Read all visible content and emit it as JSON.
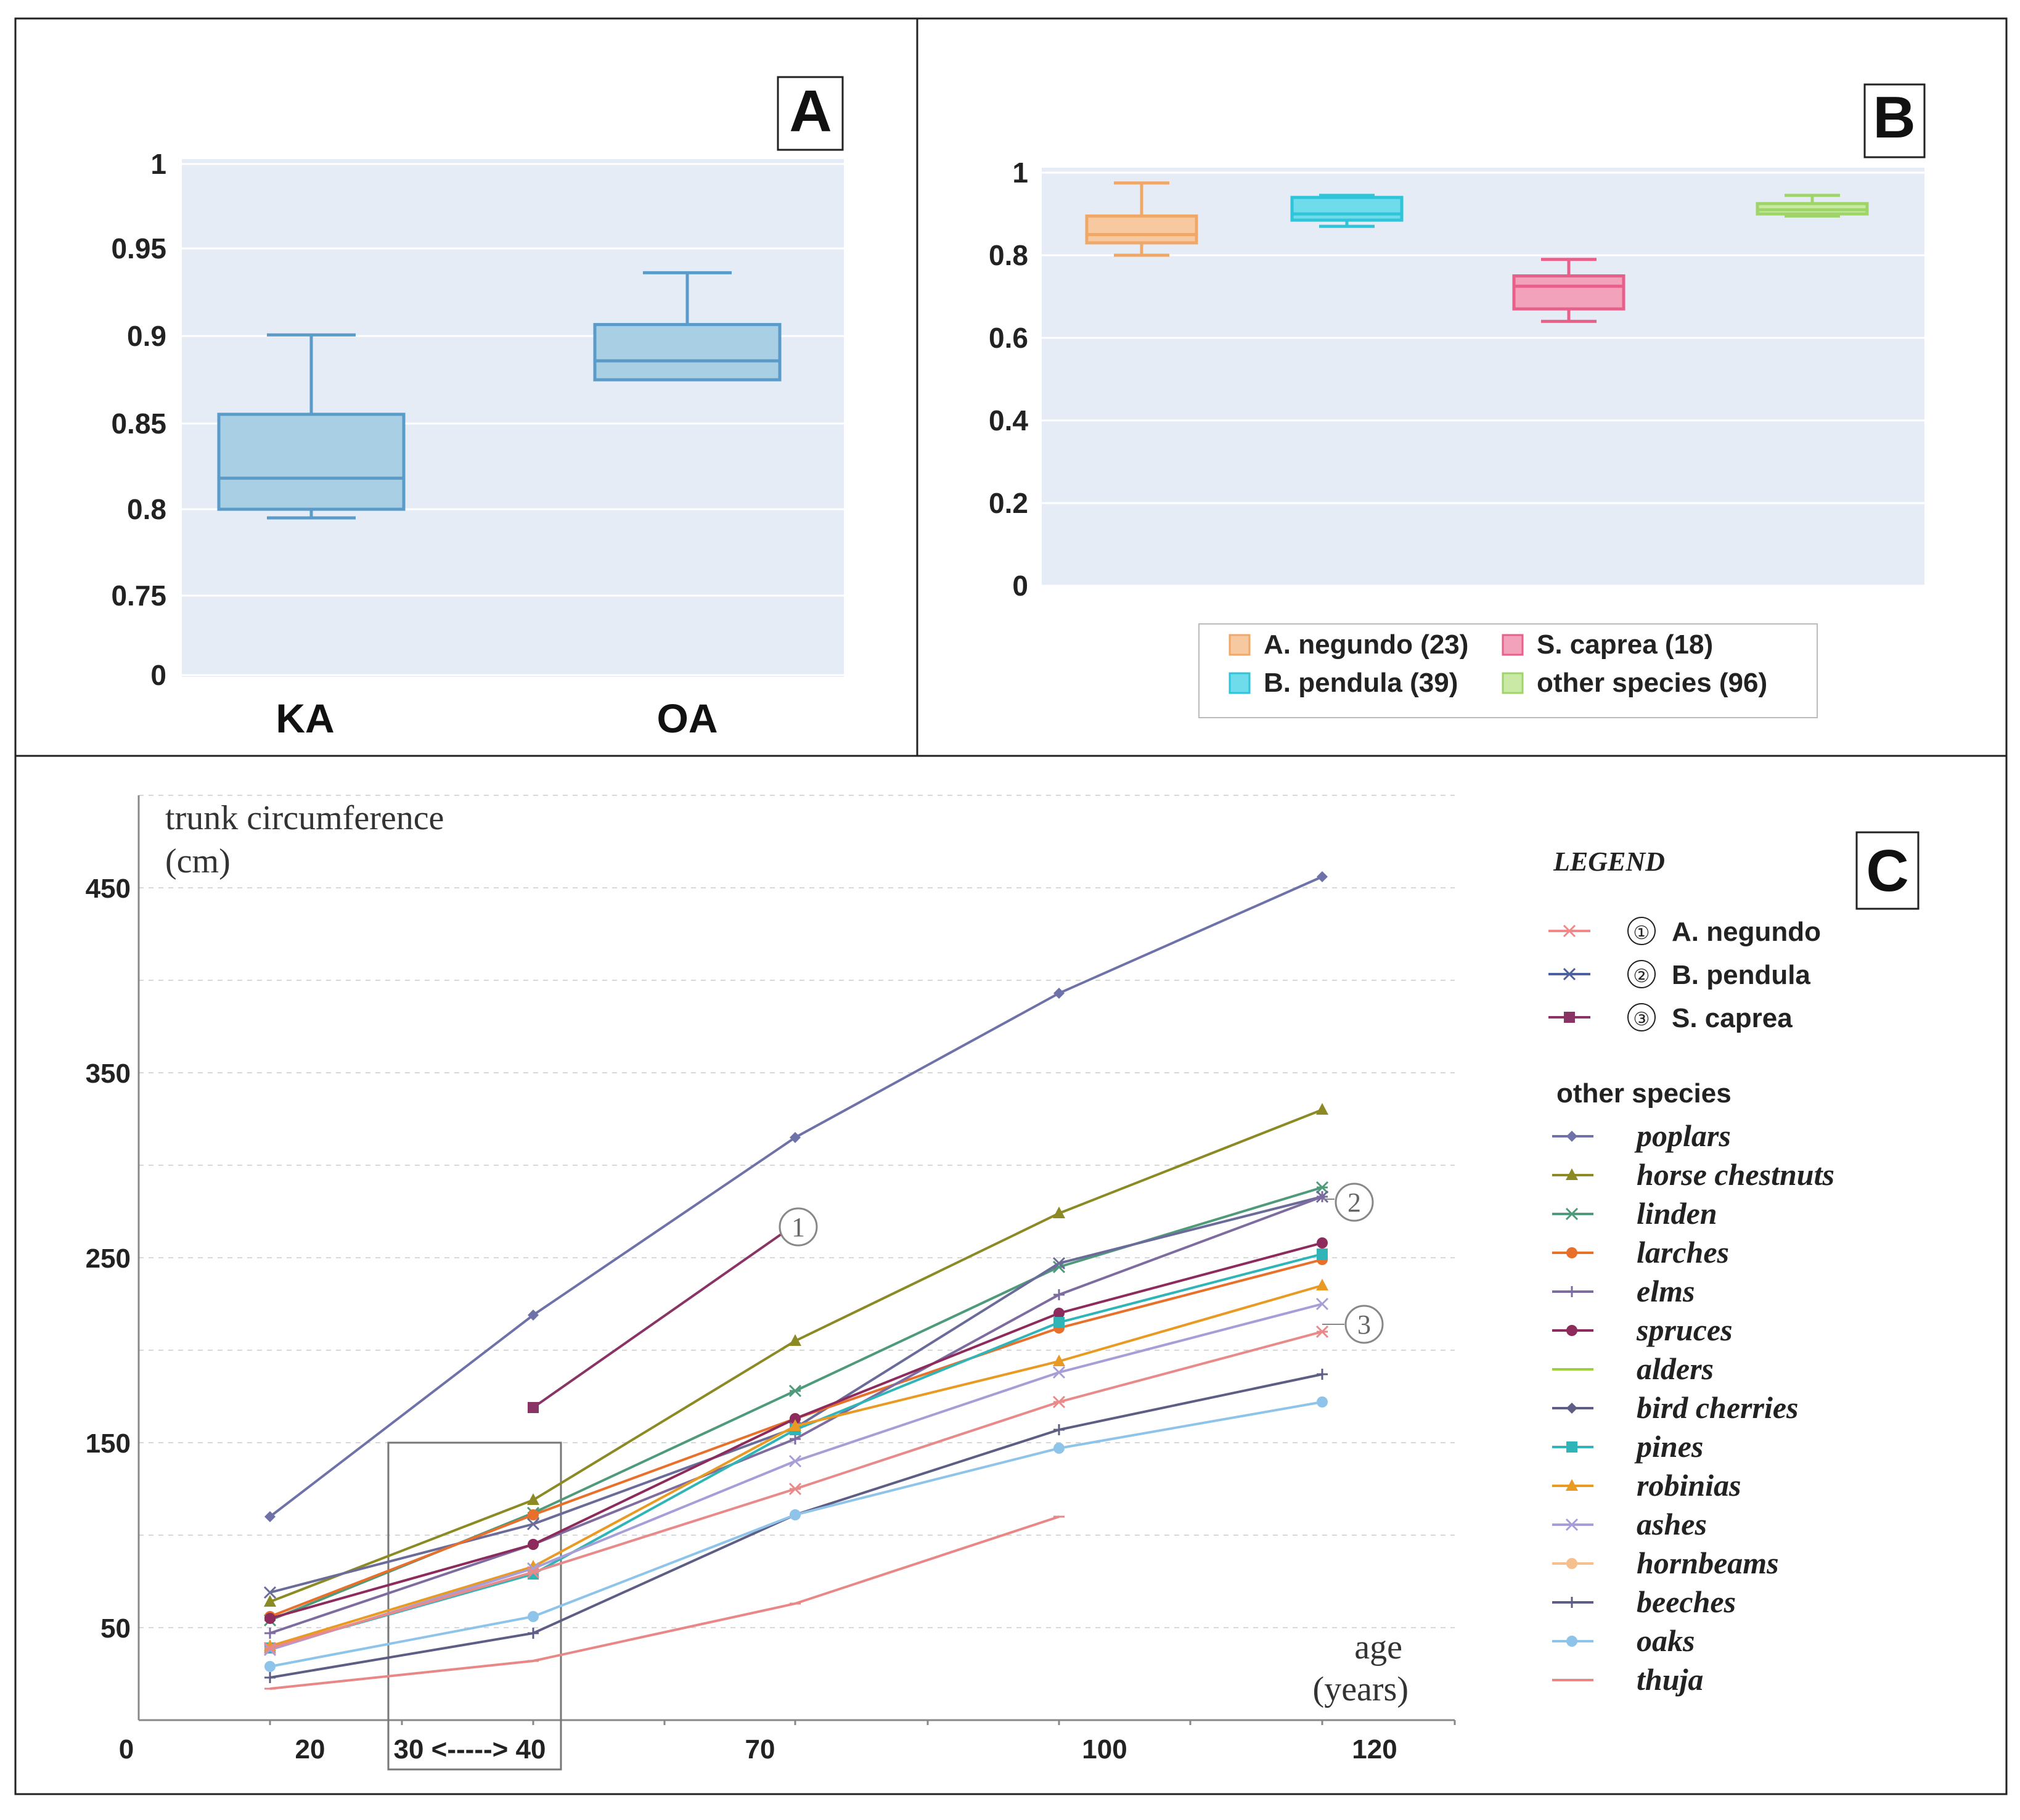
{
  "panel_labels": {
    "a": "A",
    "b": "B",
    "c": "C"
  },
  "chart_data": [
    {
      "id": "A",
      "type": "box",
      "categories": [
        "KA",
        "OA"
      ],
      "boxes": [
        {
          "name": "KA",
          "whisker_low": 0.795,
          "q1": 0.8,
          "median": 0.818,
          "q3": 0.855,
          "whisker_high": 0.901
        },
        {
          "name": "OA",
          "whisker_low": 0.875,
          "q1": 0.875,
          "median": 0.886,
          "q3": 0.907,
          "whisker_high": 0.937
        }
      ],
      "y_ticks": [
        "0",
        "0.75",
        "0.8",
        "0.85",
        "0.9",
        "0.95",
        "1"
      ],
      "color": "#5b9bc9",
      "fill": "#a9cfe4",
      "background": "#e6ecf5"
    },
    {
      "id": "B",
      "type": "box",
      "ylim": [
        0,
        1
      ],
      "y_ticks": [
        "0",
        "0.2",
        "0.4",
        "0.6",
        "0.8",
        "1"
      ],
      "boxes": [
        {
          "name": "A. negundo",
          "count": 23,
          "whisker_low": 0.8,
          "q1": 0.83,
          "median": 0.85,
          "q3": 0.895,
          "whisker_high": 0.975,
          "color": "#f0a868",
          "fill": "#f6c9a0"
        },
        {
          "name": "B. pendula",
          "count": 39,
          "whisker_low": 0.87,
          "q1": 0.885,
          "median": 0.9,
          "q3": 0.94,
          "whisker_high": 0.945,
          "color": "#2fc4d8",
          "fill": "#6fdcec"
        },
        {
          "name": "S. caprea",
          "count": 18,
          "whisker_low": 0.64,
          "q1": 0.67,
          "median": 0.725,
          "q3": 0.75,
          "whisker_high": 0.79,
          "color": "#e8608a",
          "fill": "#f3a2bb"
        },
        {
          "name": "other species",
          "count": 96,
          "whisker_low": 0.895,
          "q1": 0.9,
          "median": 0.91,
          "q3": 0.925,
          "whisker_high": 0.945,
          "color": "#9fd46a",
          "fill": "#c9e9a5"
        }
      ],
      "legend": [
        "A. negundo (23)",
        "S. caprea  (18)",
        "B. pendula (39)",
        "other species (96)"
      ],
      "background": "#e6ecf5"
    },
    {
      "id": "C",
      "type": "line",
      "ylabel": [
        "trunk circumference",
        "(cm)"
      ],
      "xlabel": [
        "age",
        "(years)"
      ],
      "y_ticks": [
        "50",
        "150",
        "250",
        "350",
        "450"
      ],
      "x_ticks": [
        "0",
        "20",
        "30 <-----> 40",
        "70",
        "100",
        "120"
      ],
      "x": [
        20,
        40,
        70,
        100,
        120
      ],
      "series": [
        {
          "name": "poplars",
          "values": [
            110,
            219,
            315,
            393,
            456
          ],
          "color": "#6f72a8",
          "marker": "diamond"
        },
        {
          "name": "A. negundo ①",
          "values": [
            null,
            169,
            268,
            null,
            null
          ],
          "color": "#8a3465",
          "marker": "square"
        },
        {
          "name": "horse chestnuts",
          "values": [
            64,
            119,
            205,
            274,
            330
          ],
          "color": "#8c8a24",
          "marker": "triangle"
        },
        {
          "name": "linden",
          "values": [
            54,
            112,
            178,
            245,
            288
          ],
          "color": "#4f9a7a",
          "marker": "star"
        },
        {
          "name": "B. pendula ②",
          "values": [
            69,
            106,
            158,
            247,
            283
          ],
          "color": "#6b6b9a",
          "marker": "x"
        },
        {
          "name": "larches",
          "values": [
            56,
            111,
            163,
            212,
            249
          ],
          "color": "#e8702a",
          "marker": "circle"
        },
        {
          "name": "elms",
          "values": [
            47,
            95,
            152,
            230,
            283
          ],
          "color": "#7e6ba0",
          "marker": "plus"
        },
        {
          "name": "spruces",
          "values": [
            55,
            95,
            163,
            220,
            258
          ],
          "color": "#8c2b5c",
          "marker": "circle"
        },
        {
          "name": "pines",
          "values": [
            39,
            79,
            157,
            215,
            252
          ],
          "color": "#2fb5b8",
          "marker": "square"
        },
        {
          "name": "robinias",
          "values": [
            40,
            83,
            159,
            194,
            235
          ],
          "color": "#e89a22",
          "marker": "triangle"
        },
        {
          "name": "ashes",
          "values": [
            38,
            82,
            140,
            188,
            225
          ],
          "color": "#a79ed8",
          "marker": "x"
        },
        {
          "name": "S. caprea ③",
          "values": [
            39,
            80,
            125,
            172,
            210
          ],
          "color": "#e98a8a",
          "marker": "star"
        },
        {
          "name": "bird cherries",
          "values": [
            23,
            47,
            111,
            157,
            187
          ],
          "color": "#5e5e84",
          "marker": "plus"
        },
        {
          "name": "oaks",
          "values": [
            29,
            56,
            111,
            147,
            172
          ],
          "color": "#8fc4ea",
          "marker": "circle"
        },
        {
          "name": "thuja",
          "values": [
            17,
            32,
            63,
            110,
            null
          ],
          "color": "#e98787",
          "marker": "dash"
        }
      ],
      "curve_labels": [
        "1",
        "2",
        "3"
      ],
      "legend": {
        "title": "LEGEND",
        "main": [
          {
            "num": "①",
            "name": "A. negundo",
            "color": "#f08a8a",
            "marker": "star"
          },
          {
            "num": "②",
            "name": "B. pendula",
            "color": "#4e5fa0",
            "marker": "x"
          },
          {
            "num": "③",
            "name": "S. caprea",
            "color": "#8a3465",
            "marker": "square"
          }
        ],
        "other_title": "other species",
        "others": [
          {
            "name": "poplars",
            "color": "#6f72a8",
            "marker": "diamond"
          },
          {
            "name": "horse chestnuts",
            "color": "#8c8a24",
            "marker": "triangle"
          },
          {
            "name": "linden",
            "color": "#4f9a7a",
            "marker": "star"
          },
          {
            "name": "larches",
            "color": "#e8702a",
            "marker": "circle"
          },
          {
            "name": "elms",
            "color": "#7e6ba0",
            "marker": "plus"
          },
          {
            "name": "spruces",
            "color": "#8c2b5c",
            "marker": "circle"
          },
          {
            "name": "alders",
            "color": "#9cd040",
            "marker": "dash"
          },
          {
            "name": "bird cherries",
            "color": "#5e5e84",
            "marker": "diamond"
          },
          {
            "name": "pines",
            "color": "#2fb5b8",
            "marker": "square"
          },
          {
            "name": "robinias",
            "color": "#e89a22",
            "marker": "triangle"
          },
          {
            "name": "ashes",
            "color": "#a79ed8",
            "marker": "x"
          },
          {
            "name": "hornbeams",
            "color": "#f6c08e",
            "marker": "circle"
          },
          {
            "name": "beeches",
            "color": "#5e5e84",
            "marker": "plus"
          },
          {
            "name": "oaks",
            "color": "#8fc4ea",
            "marker": "circle"
          },
          {
            "name": "thuja",
            "color": "#e98787",
            "marker": "dash"
          }
        ]
      }
    }
  ]
}
